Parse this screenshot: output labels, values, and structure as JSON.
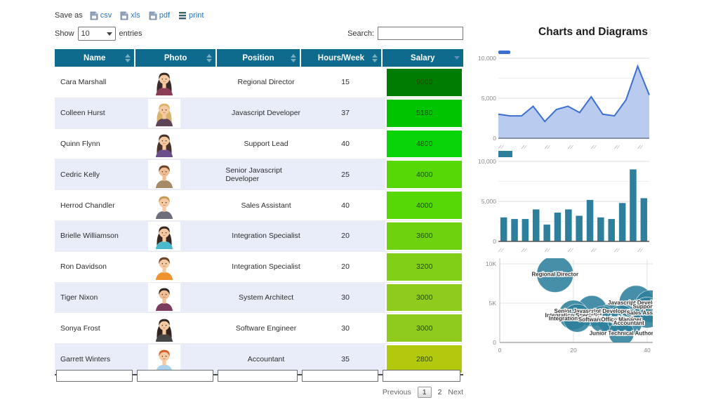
{
  "toolbar": {
    "save_as_label": "Save as",
    "exports": [
      {
        "label": "csv",
        "icon": "file-csv-icon"
      },
      {
        "label": "xls",
        "icon": "file-xls-icon"
      },
      {
        "label": "pdf",
        "icon": "file-pdf-icon"
      },
      {
        "label": "print",
        "icon": "print-icon"
      }
    ],
    "show_label": "Show",
    "show_value": "10",
    "entries_label": "entries",
    "search_label": "Search:",
    "search_value": ""
  },
  "table": {
    "header_bg": "#0f6b8d",
    "columns": [
      {
        "label": "Name",
        "sort": "both"
      },
      {
        "label": "Photo",
        "sort": "both"
      },
      {
        "label": "Position",
        "sort": "both"
      },
      {
        "label": "Hours/Week",
        "sort": "both"
      },
      {
        "label": "Salary",
        "sort": "desc"
      }
    ],
    "rows": [
      {
        "name": "Cara Marshall",
        "position": "Regional Director",
        "hours": "15",
        "salary": "9000",
        "salary_color": "#007d00",
        "avatar": {
          "hair": "#3a2a29",
          "skin": "#f6c9a0",
          "shirt": "#8c3c55",
          "long": true
        }
      },
      {
        "name": "Colleen Hurst",
        "position": "Javascript Developer",
        "hours": "37",
        "salary": "5180",
        "salary_color": "#00c400",
        "avatar": {
          "hair": "#d9b36b",
          "skin": "#f6c9a0",
          "shirt": "#5d4458",
          "long": true
        }
      },
      {
        "name": "Quinn Flynn",
        "position": "Support Lead",
        "hours": "40",
        "salary": "4800",
        "salary_color": "#07d507",
        "avatar": {
          "hair": "#4a332b",
          "skin": "#f6c9a0",
          "shirt": "#6b4f8a",
          "long": true
        }
      },
      {
        "name": "Cedric Kelly",
        "position": "Senior Javascript Developer",
        "hours": "25",
        "salary": "4000",
        "salary_color": "#55d805",
        "avatar": {
          "hair": "#6b4526",
          "skin": "#f2bd92",
          "shirt": "#a58a68",
          "long": false
        }
      },
      {
        "name": "Herrod Chandler",
        "position": "Sales Assistant",
        "hours": "40",
        "salary": "4000",
        "salary_color": "#55d805",
        "avatar": {
          "hair": "#c59a55",
          "skin": "#f6c9a0",
          "shirt": "#6e6e7a",
          "long": false
        }
      },
      {
        "name": "Brielle Williamson",
        "position": "Integration Specialist",
        "hours": "20",
        "salary": "3600",
        "salary_color": "#6fd20f",
        "avatar": {
          "hair": "#38271f",
          "skin": "#f6c9a0",
          "shirt": "#49b9cc",
          "long": true
        }
      },
      {
        "name": "Ron Davidson",
        "position": "Integration Specialist",
        "hours": "20",
        "salary": "3200",
        "salary_color": "#82cf18",
        "avatar": {
          "hair": "#6a452a",
          "skin": "#f6c9a0",
          "shirt": "#f0922e",
          "long": false
        }
      },
      {
        "name": "Tiger Nixon",
        "position": "System Architect",
        "hours": "30",
        "salary": "3000",
        "salary_color": "#8fcb1d",
        "avatar": {
          "hair": "#2f2320",
          "skin": "#f2bd92",
          "shirt": "#7d3b5e",
          "long": false
        }
      },
      {
        "name": "Sonya Frost",
        "position": "Software Engineer",
        "hours": "30",
        "salary": "3000",
        "salary_color": "#8fcb1d",
        "avatar": {
          "hair": "#33241e",
          "skin": "#f6c9a0",
          "shirt": "#454545",
          "long": true
        }
      },
      {
        "name": "Garrett Winters",
        "position": "Accountant",
        "hours": "35",
        "salary": "2800",
        "salary_color": "#b3c90d",
        "avatar": {
          "hair": "#d4622a",
          "skin": "#f6c9a0",
          "shirt": "#a9d3ea",
          "long": false
        }
      }
    ]
  },
  "pagination": {
    "previous_label": "Previous",
    "pages": [
      "1",
      "2"
    ],
    "current_page": "1",
    "next_label": "Next"
  },
  "charts_panel": {
    "title": "Charts and Diagrams"
  },
  "chart_data": [
    {
      "type": "area",
      "title": "",
      "series": [
        {
          "name": "Salary",
          "values": [
            3000,
            2800,
            2800,
            4000,
            2100,
            3600,
            4000,
            3200,
            5180,
            3000,
            2800,
            4800,
            9000,
            5400
          ]
        }
      ],
      "ylim": [
        0,
        10000
      ],
      "y_tick_labels": [
        "10,000",
        "5,000",
        "0"
      ],
      "x_tick_labels": [],
      "x_tick_marks_illegible": true,
      "line_color": "#3b6fd0",
      "fill_color": "#b5c8ee",
      "legend_position": "top-left",
      "grid": true
    },
    {
      "type": "bar",
      "title": "",
      "series": [
        {
          "name": "Salary",
          "values": [
            3000,
            2800,
            2800,
            4000,
            2100,
            3600,
            4000,
            3200,
            5180,
            3000,
            2800,
            4800,
            9000,
            5400
          ]
        }
      ],
      "ylim": [
        0,
        10000
      ],
      "y_tick_labels": [
        "10,000",
        "5,000",
        "0"
      ],
      "x_tick_labels": [],
      "x_tick_marks_illegible": true,
      "bar_color": "#2e7f9c",
      "legend_position": "top-left",
      "grid": true
    },
    {
      "type": "scatter",
      "bubble": true,
      "title": "",
      "xlim": [
        0,
        45
      ],
      "ylim": [
        0,
        10000
      ],
      "x_tick_labels": [
        "0",
        "20",
        "40"
      ],
      "x_tick_values": [
        0,
        20,
        40
      ],
      "y_tick_labels": [
        "10K",
        "5K",
        "0"
      ],
      "y_tick_values": [
        10000,
        5000,
        0
      ],
      "bubble_color": "#2e7f9c",
      "grid": true,
      "points": [
        {
          "label": "Regional Director",
          "x": 15,
          "y": 8700,
          "r": 26
        },
        {
          "label": "Javascript Developer",
          "x": 37,
          "y": 5100,
          "r": 24
        },
        {
          "label": "Support Lead",
          "x": 41,
          "y": 4600,
          "r": 23
        },
        {
          "label": "Senior Javascript Developer",
          "x": 25,
          "y": 4000,
          "r": 22
        },
        {
          "label": "Sales Assistant",
          "x": 40,
          "y": 3800,
          "r": 22
        },
        {
          "label": "Integration Specialist",
          "x": 20,
          "y": 3500,
          "r": 21
        },
        {
          "label": "Integration Specialist",
          "x": 21,
          "y": 3100,
          "r": 20
        },
        {
          "label": "System Architect",
          "x": 30,
          "y": 3100,
          "r": 20
        },
        {
          "label": "Software Engineer",
          "x": 28,
          "y": 2950,
          "r": 19
        },
        {
          "label": "Office Manager",
          "x": 33,
          "y": 2950,
          "r": 20
        },
        {
          "label": "Accountant",
          "x": 35,
          "y": 2500,
          "r": 19
        },
        {
          "label": "Junior Technical Author",
          "x": 33,
          "y": 1200,
          "r": 18
        }
      ]
    }
  ]
}
